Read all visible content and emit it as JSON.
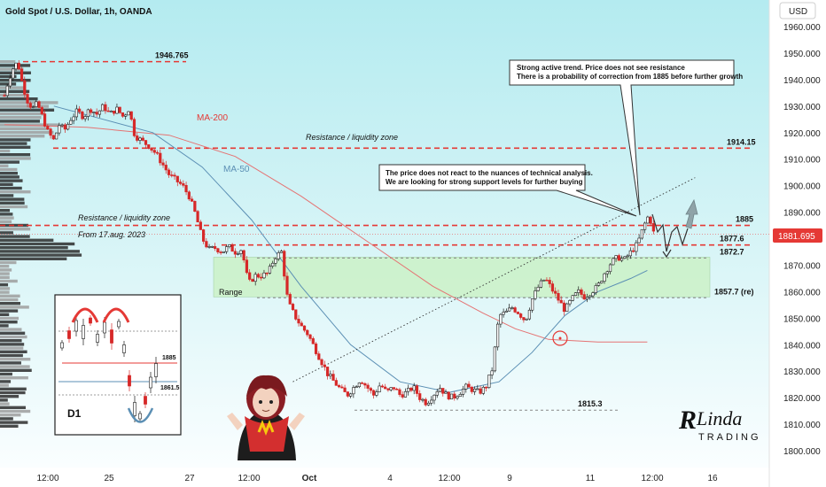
{
  "chart_data": {
    "type": "candlestick",
    "title": "Gold Spot / U.S. Dollar, 1h, OANDA",
    "currency": "USD",
    "y_range": [
      1795,
      1967
    ],
    "y_ticks": [
      "1960.000",
      "1950.000",
      "1940.000",
      "1930.000",
      "1920.000",
      "1910.000",
      "1900.000",
      "1890.000",
      "1880.000",
      "1870.000",
      "1860.000",
      "1850.000",
      "1840.000",
      "1830.000",
      "1820.000",
      "1810.000",
      "1800.000"
    ],
    "x_ticks": [
      "12:00",
      "25",
      "27",
      "12:00",
      "Oct",
      "4",
      "12:00",
      "9",
      "11",
      "12:00",
      "16"
    ],
    "last_price": "1881.695",
    "last_price_color": "#e53935",
    "price_path": [
      [
        0,
        1934
      ],
      [
        0.5,
        1940
      ],
      [
        1,
        1944
      ],
      [
        1.6,
        1946.8
      ],
      [
        2.2,
        1938
      ],
      [
        2.8,
        1932
      ],
      [
        3.4,
        1929
      ],
      [
        4,
        1931
      ],
      [
        4.6,
        1926
      ],
      [
        5.3,
        1920
      ],
      [
        6,
        1917
      ],
      [
        6.6,
        1923
      ],
      [
        7.3,
        1921
      ],
      [
        8,
        1925
      ],
      [
        8.8,
        1928
      ],
      [
        9.6,
        1926
      ],
      [
        10.4,
        1929
      ],
      [
        11.2,
        1927
      ],
      [
        12,
        1930
      ],
      [
        12.8,
        1927
      ],
      [
        13.6,
        1929
      ],
      [
        14.4,
        1926
      ],
      [
        15.1,
        1929
      ],
      [
        15.8,
        1919
      ],
      [
        16.6,
        1917
      ],
      [
        17.5,
        1915
      ],
      [
        18.4,
        1912
      ],
      [
        19.2,
        1908
      ],
      [
        20,
        1904
      ],
      [
        20.8,
        1902
      ],
      [
        21.6,
        1900
      ],
      [
        22.4,
        1896
      ],
      [
        23.2,
        1889
      ],
      [
        24,
        1880
      ],
      [
        24.8,
        1876
      ],
      [
        25.6,
        1876.5
      ],
      [
        26.4,
        1875
      ],
      [
        27.2,
        1877
      ],
      [
        28,
        1875
      ],
      [
        28.8,
        1876
      ],
      [
        29.6,
        1863
      ],
      [
        30.4,
        1866
      ],
      [
        31.2,
        1866
      ],
      [
        32,
        1867
      ],
      [
        32.8,
        1873
      ],
      [
        33.6,
        1875
      ],
      [
        34.4,
        1856
      ],
      [
        35.2,
        1851
      ],
      [
        36,
        1847
      ],
      [
        36.8,
        1844
      ],
      [
        37.6,
        1839
      ],
      [
        38.4,
        1834
      ],
      [
        39.2,
        1829
      ],
      [
        40,
        1826
      ],
      [
        40.8,
        1823
      ],
      [
        41.6,
        1821
      ],
      [
        42.4,
        1824
      ],
      [
        43.2,
        1827
      ],
      [
        44,
        1824
      ],
      [
        44.8,
        1821
      ],
      [
        45.6,
        1825
      ],
      [
        46.4,
        1822
      ],
      [
        47.2,
        1824
      ],
      [
        48,
        1821
      ],
      [
        48.8,
        1822
      ],
      [
        49.6,
        1824
      ],
      [
        50.4,
        1820
      ],
      [
        51.2,
        1818
      ],
      [
        52,
        1821
      ],
      [
        52.8,
        1824
      ],
      [
        53.6,
        1821
      ],
      [
        54.4,
        1820
      ],
      [
        55.2,
        1822
      ],
      [
        56,
        1824
      ],
      [
        56.8,
        1823
      ],
      [
        57.6,
        1822
      ],
      [
        58.4,
        1824
      ],
      [
        59.2,
        1831
      ],
      [
        60,
        1851
      ],
      [
        60.8,
        1852
      ],
      [
        61.6,
        1854
      ],
      [
        62.4,
        1852
      ],
      [
        63.2,
        1849
      ],
      [
        64,
        1857
      ],
      [
        64.8,
        1862
      ],
      [
        65.6,
        1865
      ],
      [
        66.4,
        1861
      ],
      [
        67.2,
        1857
      ],
      [
        68,
        1853
      ],
      [
        68.8,
        1857
      ],
      [
        69.6,
        1860
      ],
      [
        70.4,
        1858
      ],
      [
        71.2,
        1860
      ],
      [
        72,
        1862
      ],
      [
        72.8,
        1867
      ],
      [
        73.6,
        1871
      ],
      [
        74.4,
        1873
      ],
      [
        75.2,
        1872
      ],
      [
        76,
        1875
      ],
      [
        76.8,
        1878
      ],
      [
        77.6,
        1885
      ],
      [
        78.2,
        1889
      ],
      [
        78.8,
        1881.7
      ]
    ],
    "moving_averages": [
      {
        "name": "MA-200",
        "color": "#e57373",
        "points": [
          [
            0,
            1923
          ],
          [
            10,
            1922
          ],
          [
            20,
            1919
          ],
          [
            28,
            1911
          ],
          [
            36,
            1896
          ],
          [
            44,
            1879
          ],
          [
            52,
            1862
          ],
          [
            58,
            1852
          ],
          [
            62,
            1846
          ],
          [
            66,
            1842
          ],
          [
            72,
            1841
          ],
          [
            78,
            1841
          ]
        ]
      },
      {
        "name": "MA-50",
        "color": "#5b8fb4",
        "points": [
          [
            6,
            1930
          ],
          [
            12,
            1925
          ],
          [
            18,
            1920
          ],
          [
            24,
            1907
          ],
          [
            30,
            1887
          ],
          [
            36,
            1862
          ],
          [
            42,
            1840
          ],
          [
            48,
            1826
          ],
          [
            54,
            1822
          ],
          [
            60,
            1826
          ],
          [
            64,
            1837
          ],
          [
            68,
            1851
          ],
          [
            72,
            1860
          ],
          [
            76,
            1865
          ],
          [
            78,
            1868
          ]
        ]
      }
    ],
    "levels": [
      {
        "label": "1946.765",
        "value": 1946.765,
        "style": "dashed",
        "color": "#e53935"
      },
      {
        "label": "1914.15",
        "value": 1914.15,
        "style": "dashed",
        "color": "#e53935"
      },
      {
        "label": "1885",
        "value": 1885,
        "style": "dashed",
        "color": "#e53935"
      },
      {
        "label": "1877.6",
        "value": 1877.6,
        "style": "dashed",
        "color": "#e53935"
      },
      {
        "label": "1872.7",
        "value": 1872.7,
        "style": "dashed",
        "color": "#888888"
      },
      {
        "label": "1857.7 (re)",
        "value": 1857.7,
        "style": "dashed",
        "color": "#888888"
      },
      {
        "label": "1815.3",
        "value": 1815.3,
        "style": "dashed",
        "color": "#888888"
      }
    ],
    "range_zone": {
      "label": "Range",
      "top": 1873,
      "bottom": 1858,
      "color": "#c8f0c0"
    },
    "trendline": {
      "from": [
        35,
        1826
      ],
      "to": [
        83.8,
        1903
      ],
      "style": "dotted",
      "color": "#333333"
    },
    "annotations": {
      "ma200": "MA-200",
      "ma50": "MA-50",
      "resistance_upper": "Resistance / liquidity zone",
      "resistance_lower": "Resistance / liquidity zone",
      "from_date": "From 17.aug. 2023",
      "range": "Range",
      "callout_top_line1": "Strong active trend. Price does not see resistance",
      "callout_top_line2": "There is a probability of correction from 1885 before further growth",
      "callout_mid_line1": "The price does not react to the nuances of technical analysis.",
      "callout_mid_line2": "We are looking for strong support levels for further buying"
    },
    "inset": {
      "label": "D1",
      "levels": [
        "1885",
        "1861.5"
      ]
    },
    "brand": {
      "line1": "Linda",
      "line2": "TRADING"
    }
  }
}
